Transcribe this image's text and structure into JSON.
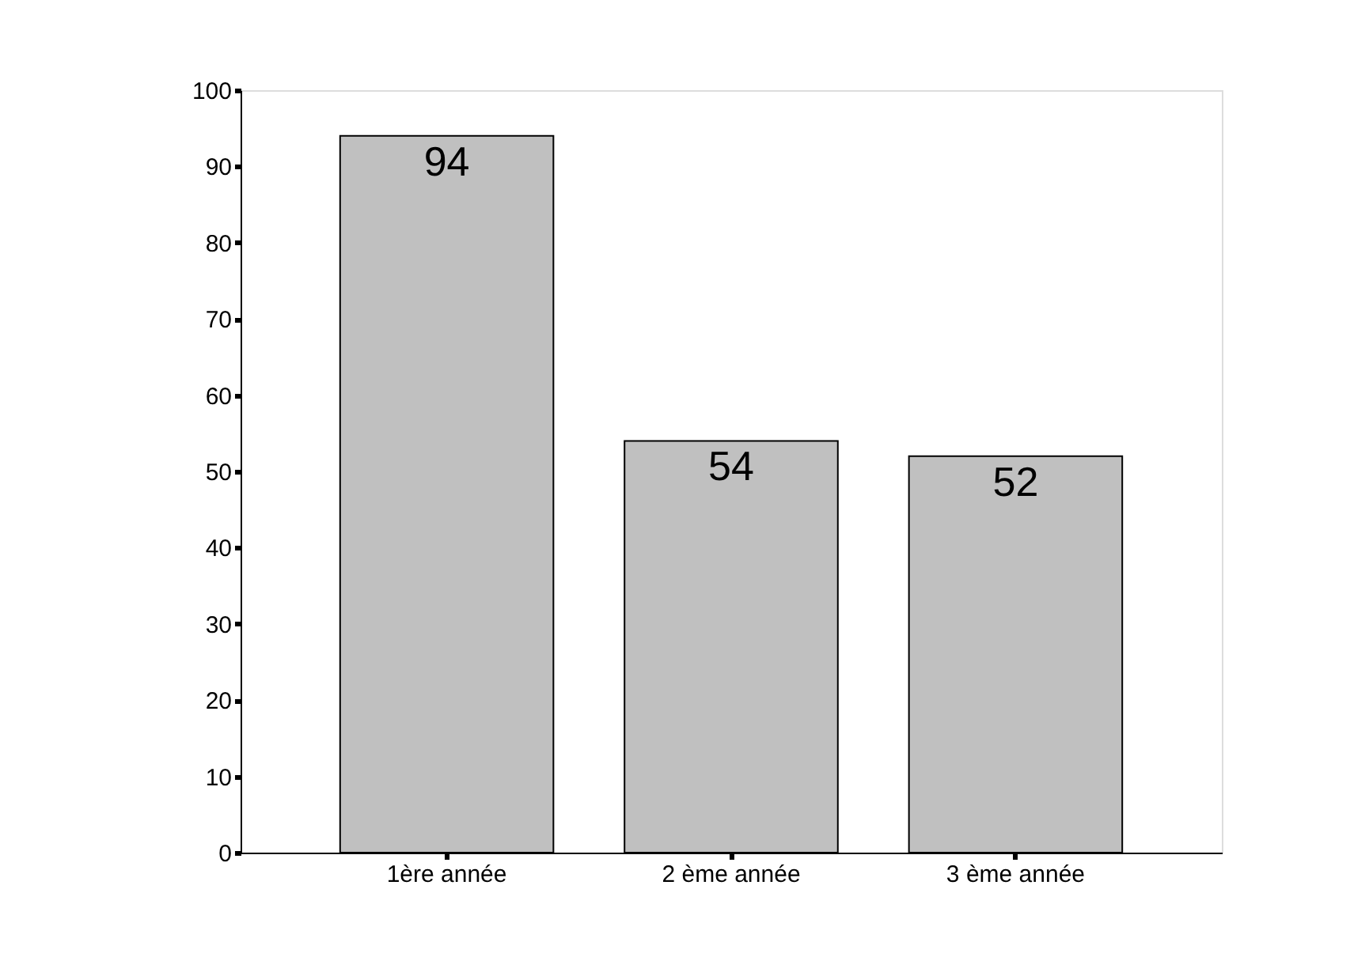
{
  "chart_data": {
    "type": "bar",
    "categories": [
      "1ère année",
      "2 ème année",
      "3 ème année"
    ],
    "values": [
      94,
      54,
      52
    ],
    "color": "#c0c0c0",
    "ylim": [
      0,
      100
    ],
    "yticks": [
      0,
      10,
      20,
      30,
      40,
      50,
      60,
      70,
      80,
      90,
      100
    ],
    "data_labels": true,
    "grid": false
  }
}
